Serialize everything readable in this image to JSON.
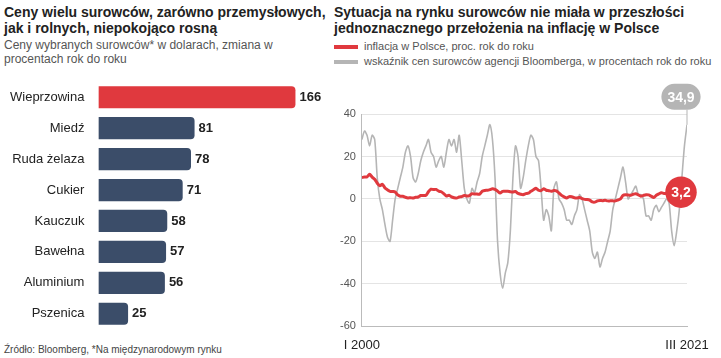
{
  "chart_data": [
    {
      "type": "bar",
      "orientation": "horizontal",
      "title": "Ceny wielu surowców, zarówno przemysłowych, jak i rolnych, niepokojąco rosną",
      "subtitle": "Ceny wybranych surowców* w dolarach, zmiana w procentach rok do roku",
      "source": "Źródło: Bloomberg, *Na międzynarodowym rynku",
      "categories": [
        "Wieprzowina",
        "Miedź",
        "Ruda żelaza",
        "Cukier",
        "Kauczuk",
        "Bawełna",
        "Aluminium",
        "Pszenica"
      ],
      "values": [
        166,
        81,
        78,
        71,
        58,
        57,
        56,
        25
      ],
      "colors": [
        "#e0393e",
        "#3b4d69",
        "#3b4d69",
        "#3b4d69",
        "#3b4d69",
        "#3b4d69",
        "#3b4d69",
        "#3b4d69"
      ],
      "xlim": [
        0,
        185
      ],
      "data_labels": true,
      "tick_labels": "y",
      "grid": false
    },
    {
      "type": "line",
      "title": "Sytuacja na rynku surowców nie miała w przeszłości jednoznacznego przełożenia na inflację w Polsce",
      "legend": "top",
      "grid": true,
      "categories": [
        "I 2000",
        null,
        null,
        null,
        null,
        null,
        null,
        null,
        null,
        null,
        null,
        null,
        null,
        null,
        null,
        null,
        null,
        null,
        null,
        null,
        null,
        null,
        null,
        null,
        null,
        null,
        null,
        null,
        null,
        null,
        null,
        null,
        null,
        null,
        null,
        null,
        null,
        null,
        null,
        null,
        null,
        null,
        null,
        null,
        null,
        null,
        null,
        null,
        null,
        null,
        null,
        null,
        null,
        null,
        null,
        null,
        null,
        null,
        null,
        null,
        null,
        null,
        null,
        null,
        null,
        null,
        null,
        null,
        null,
        null,
        null,
        null,
        null,
        null,
        null,
        null,
        null,
        null,
        null,
        null,
        null,
        null,
        null,
        null,
        null,
        null,
        null,
        null,
        null,
        null,
        null,
        null,
        null,
        null,
        null,
        null,
        null,
        null,
        null,
        null,
        null,
        null,
        null,
        null,
        null,
        null,
        null,
        null,
        null,
        null,
        null,
        null,
        null,
        null,
        null,
        null,
        null,
        null,
        null,
        null,
        null,
        null,
        null,
        null,
        null,
        null,
        null,
        "III 2021"
      ],
      "ylim": [
        -60,
        40
      ],
      "yticks": [
        -60,
        -40,
        -20,
        0,
        20,
        40
      ],
      "series": [
        {
          "name": "wskaźnik cen surowców agencji Bloomberga, w procentach rok do roku",
          "color": "#b5b5b5",
          "values": [
            28,
            32,
            30,
            25,
            30,
            28,
            10,
            0,
            -5,
            -12,
            -18,
            -20,
            -10,
            0,
            5,
            10,
            15,
            22,
            25,
            20,
            10,
            8,
            12,
            18,
            22,
            25,
            28,
            22,
            20,
            15,
            18,
            20,
            15,
            22,
            28,
            25,
            28,
            22,
            30,
            18,
            5,
            0,
            -2,
            5,
            3,
            8,
            12,
            20,
            25,
            30,
            35,
            28,
            10,
            -20,
            -35,
            -42,
            -35,
            -30,
            -15,
            10,
            25,
            20,
            5,
            10,
            18,
            25,
            30,
            28,
            20,
            18,
            5,
            -10,
            -5,
            -8,
            -15,
            5,
            8,
            0,
            -2,
            -5,
            -10,
            -10,
            -12,
            -8,
            -5,
            2,
            0,
            -5,
            -10,
            -15,
            -25,
            -28,
            -25,
            -32,
            -28,
            -25,
            -20,
            -15,
            -5,
            0,
            5,
            10,
            15,
            8,
            0,
            2,
            4,
            6,
            2,
            2,
            0,
            -8,
            -8,
            -10,
            -5,
            -3,
            -6,
            -4,
            -2,
            0,
            -2,
            -15,
            -22,
            -15,
            -5,
            10,
            25,
            34.9
          ],
          "value_labels": [
            null,
            null,
            null,
            null,
            null,
            null,
            null,
            null,
            null,
            null,
            null,
            null,
            null,
            null,
            null,
            null,
            null,
            null,
            null,
            null,
            null,
            null,
            null,
            null,
            null,
            null,
            null,
            null,
            null,
            null,
            null,
            null,
            null,
            null,
            null,
            null,
            null,
            null,
            null,
            null,
            null,
            null,
            null,
            null,
            null,
            null,
            null,
            null,
            null,
            null,
            null,
            null,
            null,
            null,
            null,
            null,
            null,
            null,
            null,
            null,
            null,
            null,
            null,
            null,
            null,
            null,
            null,
            null,
            null,
            null,
            null,
            null,
            null,
            null,
            null,
            null,
            null,
            null,
            null,
            null,
            null,
            null,
            null,
            null,
            null,
            null,
            null,
            null,
            null,
            null,
            null,
            null,
            null,
            null,
            null,
            null,
            null,
            null,
            null,
            null,
            null,
            null,
            null,
            null,
            null,
            null,
            null,
            null,
            null,
            null,
            null,
            null,
            null,
            null,
            null,
            null,
            null,
            null,
            null,
            null,
            null,
            null,
            null,
            null,
            null,
            null,
            null,
            "34,9"
          ]
        },
        {
          "name": "inflacja w Polsce, proc. rok do roku",
          "color": "#e0393e",
          "values": [
            10.1,
            10.3,
            10.4,
            11.6,
            10.3,
            9.3,
            7.4,
            6.2,
            6.9,
            5.2,
            4.3,
            3.6,
            3.5,
            3.3,
            1.9,
            1.3,
            1.3,
            0.8,
            0.5,
            0.6,
            0.4,
            0.8,
            0.9,
            1.6,
            1.6,
            1.7,
            3.4,
            4.6,
            4.4,
            4.5,
            3.7,
            3.4,
            2.5,
            1.4,
            1.8,
            1.0,
            0.6,
            0.4,
            0.9,
            1.1,
            1.6,
            1.4,
            1.6,
            2.5,
            2.3,
            2.3,
            2.2,
            3.6,
            4.0,
            4.1,
            4.4,
            4.8,
            4.5,
            3.7,
            2.8,
            3.6,
            3.6,
            3.6,
            3.4,
            3.3,
            3.5,
            2.6,
            2.2,
            2.0,
            2.5,
            2.7,
            3.6,
            4.3,
            5.0,
            4.1,
            3.9,
            4.8,
            4.1,
            3.9,
            3.6,
            4.0,
            3.8,
            2.8,
            1.7,
            1.0,
            0.5,
            1.1,
            1.0,
            0.6,
            0.5,
            0.7,
            0.2,
            -0.2,
            -0.3,
            -0.6,
            -1.4,
            -1.5,
            -0.9,
            -0.7,
            -0.8,
            -0.6,
            -0.9,
            -0.9,
            -0.9,
            -0.9,
            -0.5,
            0.0,
            1.7,
            2.0,
            1.9,
            1.7,
            2.2,
            2.5,
            1.9,
            1.3,
            1.7,
            2.0,
            1.9,
            1.3,
            0.7,
            1.7,
            2.4,
            2.9,
            2.6,
            2.6,
            4.3,
            4.6,
            2.9,
            3.0,
            3.2,
            3.0,
            2.6,
            3.2
          ],
          "value_labels": [
            null,
            null,
            null,
            null,
            null,
            null,
            null,
            null,
            null,
            null,
            null,
            null,
            null,
            null,
            null,
            null,
            null,
            null,
            null,
            null,
            null,
            null,
            null,
            null,
            null,
            null,
            null,
            null,
            null,
            null,
            null,
            null,
            null,
            null,
            null,
            null,
            null,
            null,
            null,
            null,
            null,
            null,
            null,
            null,
            null,
            null,
            null,
            null,
            null,
            null,
            null,
            null,
            null,
            null,
            null,
            null,
            null,
            null,
            null,
            null,
            null,
            null,
            null,
            null,
            null,
            null,
            null,
            null,
            null,
            null,
            null,
            null,
            null,
            null,
            null,
            null,
            null,
            null,
            null,
            null,
            null,
            null,
            null,
            null,
            null,
            null,
            null,
            null,
            null,
            null,
            null,
            null,
            null,
            null,
            null,
            null,
            null,
            null,
            null,
            null,
            null,
            null,
            null,
            null,
            null,
            null,
            null,
            null,
            null,
            null,
            null,
            null,
            null,
            null,
            null,
            null,
            null,
            null,
            null,
            null,
            null,
            null,
            null,
            null,
            null,
            null,
            null,
            "3,2"
          ]
        }
      ]
    }
  ]
}
